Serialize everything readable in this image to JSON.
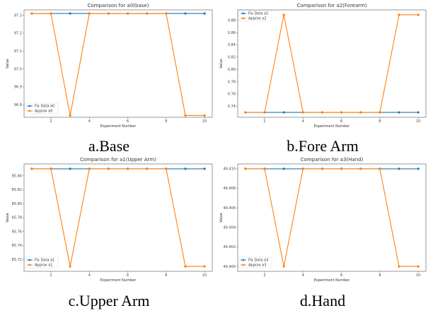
{
  "chart_data": [
    {
      "type": "line",
      "title": "Comparison for a0(base)",
      "caption": "a.Base",
      "xlabel": "Experiment Number",
      "ylabel": "Value",
      "x": [
        1,
        2,
        3,
        4,
        5,
        6,
        7,
        8,
        9,
        10
      ],
      "xticks": [
        2,
        4,
        6,
        8,
        10
      ],
      "xlim": [
        0.6,
        10.4
      ],
      "ylim": [
        96.73,
        97.33
      ],
      "yticks": [
        96.8,
        96.9,
        97.0,
        97.1,
        97.2,
        97.3
      ],
      "ytick_labels": [
        "96.8",
        "96.9",
        "97.0",
        "97.1",
        "97.2",
        "97.3"
      ],
      "legend_position": "lower-left",
      "grid": false,
      "series": [
        {
          "name": "Fix Data a0",
          "color": "#1f77b4",
          "values": [
            97.31,
            97.31,
            97.31,
            97.31,
            97.31,
            97.31,
            97.31,
            97.31,
            97.31,
            97.31
          ]
        },
        {
          "name": "Approx a0",
          "color": "#ff7f0e",
          "values": [
            97.31,
            97.31,
            96.74,
            97.31,
            97.31,
            97.31,
            97.31,
            97.31,
            96.74,
            96.74
          ]
        }
      ]
    },
    {
      "type": "line",
      "title": "Comparison for a2(Forearm)",
      "caption": "b.Fore Arm",
      "xlabel": "Experiment Number",
      "ylabel": "Value",
      "x": [
        1,
        2,
        3,
        4,
        5,
        6,
        7,
        8,
        9,
        10
      ],
      "xticks": [
        2,
        4,
        6,
        8,
        10
      ],
      "xlim": [
        0.6,
        10.4
      ],
      "ylim": [
        0.722,
        0.897
      ],
      "yticks": [
        0.74,
        0.76,
        0.78,
        0.8,
        0.82,
        0.84,
        0.86,
        0.88
      ],
      "ytick_labels": [
        "0.74",
        "0.76",
        "0.78",
        "0.80",
        "0.82",
        "0.84",
        "0.86",
        "0.88"
      ],
      "legend_position": "top-left",
      "grid": false,
      "series": [
        {
          "name": "Fix Data a2",
          "color": "#1f77b4",
          "values": [
            0.73,
            0.73,
            0.73,
            0.73,
            0.73,
            0.73,
            0.73,
            0.73,
            0.73,
            0.73
          ]
        },
        {
          "name": "Approx a2",
          "color": "#ff7f0e",
          "values": [
            0.73,
            0.73,
            0.889,
            0.73,
            0.73,
            0.73,
            0.73,
            0.73,
            0.889,
            0.889
          ]
        }
      ]
    },
    {
      "type": "line",
      "title": "Comparison for a1(Upper Arm)",
      "caption": "c.Upper Arm",
      "xlabel": "Experiment Number",
      "ylabel": "Value",
      "x": [
        1,
        2,
        3,
        4,
        5,
        6,
        7,
        8,
        9,
        10
      ],
      "xticks": [
        2,
        4,
        6,
        8,
        10
      ],
      "xlim": [
        0.6,
        10.4
      ],
      "ylim": [
        85.703,
        85.857
      ],
      "yticks": [
        85.72,
        85.74,
        85.76,
        85.78,
        85.8,
        85.82,
        85.84
      ],
      "ytick_labels": [
        "85.72",
        "85.74",
        "85.76",
        "85.78",
        "85.80",
        "85.82",
        "85.84"
      ],
      "legend_position": "lower-left",
      "grid": false,
      "series": [
        {
          "name": "Fix Data a1",
          "color": "#1f77b4",
          "values": [
            85.85,
            85.85,
            85.85,
            85.85,
            85.85,
            85.85,
            85.85,
            85.85,
            85.85,
            85.85
          ]
        },
        {
          "name": "Approx a1",
          "color": "#ff7f0e",
          "values": [
            85.85,
            85.85,
            85.71,
            85.85,
            85.85,
            85.85,
            85.85,
            85.85,
            85.71,
            85.71
          ]
        }
      ]
    },
    {
      "type": "line",
      "title": "Comparison for a3(Hand)",
      "caption": "d.Hand",
      "xlabel": "Experiment Number",
      "ylabel": "Value",
      "x": [
        1,
        2,
        3,
        4,
        5,
        6,
        7,
        8,
        9,
        10
      ],
      "xticks": [
        2,
        4,
        6,
        8,
        10
      ],
      "xlim": [
        0.6,
        10.4
      ],
      "ylim": [
        49.3995,
        49.4105
      ],
      "yticks": [
        49.4,
        49.402,
        49.404,
        49.406,
        49.408,
        49.41
      ],
      "ytick_labels": [
        "49.400",
        "49.402",
        "49.404",
        "49.406",
        "49.408",
        "49.410"
      ],
      "legend_position": "lower-left",
      "grid": false,
      "series": [
        {
          "name": "Fix Data a3",
          "color": "#1f77b4",
          "values": [
            49.41,
            49.41,
            49.41,
            49.41,
            49.41,
            49.41,
            49.41,
            49.41,
            49.41,
            49.41
          ]
        },
        {
          "name": "Approx a3",
          "color": "#ff7f0e",
          "values": [
            49.41,
            49.41,
            49.4,
            49.41,
            49.41,
            49.41,
            49.41,
            49.41,
            49.4,
            49.4
          ]
        }
      ]
    }
  ]
}
